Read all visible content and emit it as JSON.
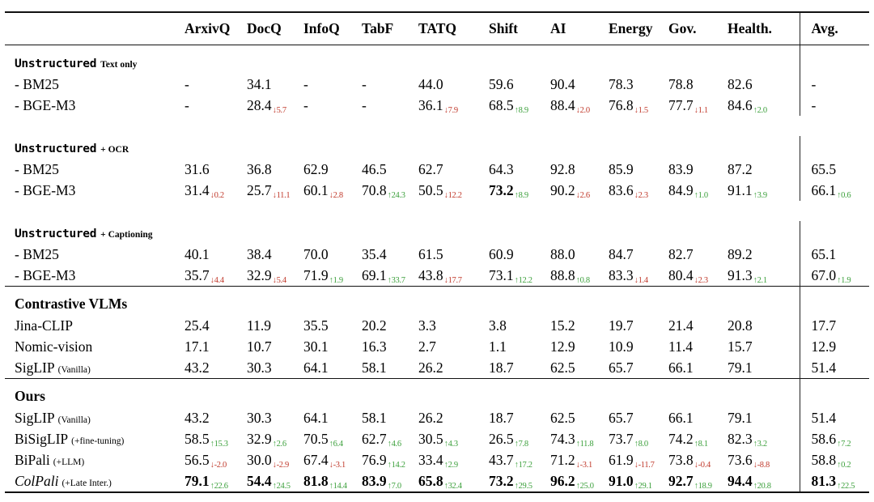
{
  "colors": {
    "up": "#3CA03C",
    "down": "#C0392B",
    "rule": "#111111"
  },
  "columns": [
    "ArxivQ",
    "DocQ",
    "InfoQ",
    "TabF",
    "TATQ",
    "Shift",
    "AI",
    "Energy",
    "Gov.",
    "Health.",
    "Avg."
  ],
  "blocks": [
    {
      "sections": [
        {
          "header": {
            "main": "Unstructured",
            "suffix": "Text only",
            "mono": true
          },
          "rows": [
            {
              "label": {
                "text": "- BM25"
              },
              "cells": [
                {
                  "v": "-"
                },
                {
                  "v": "34.1"
                },
                {
                  "v": "-"
                },
                {
                  "v": "-"
                },
                {
                  "v": "44.0"
                },
                {
                  "v": "59.6"
                },
                {
                  "v": "90.4"
                },
                {
                  "v": "78.3"
                },
                {
                  "v": "78.8"
                },
                {
                  "v": "82.6"
                },
                {
                  "v": "-"
                }
              ]
            },
            {
              "label": {
                "text": "- BGE-M3"
              },
              "cells": [
                {
                  "v": "-"
                },
                {
                  "v": "28.4",
                  "d": "↓5.7",
                  "dir": "down"
                },
                {
                  "v": "-"
                },
                {
                  "v": "-"
                },
                {
                  "v": "36.1",
                  "d": "↓7.9",
                  "dir": "down"
                },
                {
                  "v": "68.5",
                  "d": "↑8.9",
                  "dir": "up"
                },
                {
                  "v": "88.4",
                  "d": "↓2.0",
                  "dir": "down"
                },
                {
                  "v": "76.8",
                  "d": "↓1.5",
                  "dir": "down"
                },
                {
                  "v": "77.7",
                  "d": "↓1.1",
                  "dir": "down"
                },
                {
                  "v": "84.6",
                  "d": "↑2.0",
                  "dir": "up"
                },
                {
                  "v": "-"
                }
              ]
            }
          ]
        },
        {
          "header": {
            "main": "Unstructured",
            "suffix": "+ OCR",
            "mono": true
          },
          "rows": [
            {
              "label": {
                "text": "- BM25"
              },
              "cells": [
                {
                  "v": "31.6"
                },
                {
                  "v": "36.8"
                },
                {
                  "v": "62.9"
                },
                {
                  "v": "46.5"
                },
                {
                  "v": "62.7"
                },
                {
                  "v": "64.3"
                },
                {
                  "v": "92.8"
                },
                {
                  "v": "85.9"
                },
                {
                  "v": "83.9"
                },
                {
                  "v": "87.2"
                },
                {
                  "v": "65.5"
                }
              ]
            },
            {
              "label": {
                "text": "- BGE-M3"
              },
              "cells": [
                {
                  "v": "31.4",
                  "d": "↓0.2",
                  "dir": "down"
                },
                {
                  "v": "25.7",
                  "d": "↓11.1",
                  "dir": "down"
                },
                {
                  "v": "60.1",
                  "d": "↓2.8",
                  "dir": "down"
                },
                {
                  "v": "70.8",
                  "d": "↑24.3",
                  "dir": "up"
                },
                {
                  "v": "50.5",
                  "d": "↓12.2",
                  "dir": "down"
                },
                {
                  "v": "73.2",
                  "b": true,
                  "d": "↑8.9",
                  "dir": "up"
                },
                {
                  "v": "90.2",
                  "d": "↓2.6",
                  "dir": "down"
                },
                {
                  "v": "83.6",
                  "d": "↓2.3",
                  "dir": "down"
                },
                {
                  "v": "84.9",
                  "d": "↑1.0",
                  "dir": "up"
                },
                {
                  "v": "91.1",
                  "d": "↑3.9",
                  "dir": "up"
                },
                {
                  "v": "66.1",
                  "d": "↑0.6",
                  "dir": "up"
                }
              ]
            }
          ]
        },
        {
          "header": {
            "main": "Unstructured",
            "suffix": "+ Captioning",
            "mono": true
          },
          "rows": [
            {
              "label": {
                "text": "- BM25"
              },
              "cells": [
                {
                  "v": "40.1"
                },
                {
                  "v": "38.4"
                },
                {
                  "v": "70.0"
                },
                {
                  "v": "35.4"
                },
                {
                  "v": "61.5"
                },
                {
                  "v": "60.9"
                },
                {
                  "v": "88.0"
                },
                {
                  "v": "84.7"
                },
                {
                  "v": "82.7"
                },
                {
                  "v": "89.2"
                },
                {
                  "v": "65.1"
                }
              ]
            },
            {
              "label": {
                "text": "- BGE-M3"
              },
              "cells": [
                {
                  "v": "35.7",
                  "d": "↓4.4",
                  "dir": "down"
                },
                {
                  "v": "32.9",
                  "d": "↓5.4",
                  "dir": "down"
                },
                {
                  "v": "71.9",
                  "d": "↑1.9",
                  "dir": "up"
                },
                {
                  "v": "69.1",
                  "d": "↑33.7",
                  "dir": "up"
                },
                {
                  "v": "43.8",
                  "d": "↓17.7",
                  "dir": "down"
                },
                {
                  "v": "73.1",
                  "d": "↑12.2",
                  "dir": "up"
                },
                {
                  "v": "88.8",
                  "d": "↑0.8",
                  "dir": "up"
                },
                {
                  "v": "83.3",
                  "d": "↓1.4",
                  "dir": "down"
                },
                {
                  "v": "80.4",
                  "d": "↓2.3",
                  "dir": "down"
                },
                {
                  "v": "91.3",
                  "d": "↑2.1",
                  "dir": "up"
                },
                {
                  "v": "67.0",
                  "d": "↑1.9",
                  "dir": "up"
                }
              ]
            }
          ]
        }
      ]
    },
    {
      "sections": [
        {
          "header": {
            "main": "Contrastive VLMs",
            "mono": false
          },
          "rows": [
            {
              "label": {
                "text": "Jina-CLIP"
              },
              "cells": [
                {
                  "v": "25.4"
                },
                {
                  "v": "11.9"
                },
                {
                  "v": "35.5"
                },
                {
                  "v": "20.2"
                },
                {
                  "v": "3.3"
                },
                {
                  "v": "3.8"
                },
                {
                  "v": "15.2"
                },
                {
                  "v": "19.7"
                },
                {
                  "v": "21.4"
                },
                {
                  "v": "20.8"
                },
                {
                  "v": "17.7"
                }
              ]
            },
            {
              "label": {
                "text": "Nomic-vision"
              },
              "cells": [
                {
                  "v": "17.1"
                },
                {
                  "v": "10.7"
                },
                {
                  "v": "30.1"
                },
                {
                  "v": "16.3"
                },
                {
                  "v": "2.7"
                },
                {
                  "v": "1.1"
                },
                {
                  "v": "12.9"
                },
                {
                  "v": "10.9"
                },
                {
                  "v": "11.4"
                },
                {
                  "v": "15.7"
                },
                {
                  "v": "12.9"
                }
              ]
            },
            {
              "label": {
                "text": "SigLIP",
                "note": "(Vanilla)"
              },
              "cells": [
                {
                  "v": "43.2"
                },
                {
                  "v": "30.3"
                },
                {
                  "v": "64.1"
                },
                {
                  "v": "58.1"
                },
                {
                  "v": "26.2"
                },
                {
                  "v": "18.7"
                },
                {
                  "v": "62.5"
                },
                {
                  "v": "65.7"
                },
                {
                  "v": "66.1"
                },
                {
                  "v": "79.1"
                },
                {
                  "v": "51.4"
                }
              ]
            }
          ]
        }
      ]
    },
    {
      "sections": [
        {
          "header": {
            "main": "Ours",
            "mono": false
          },
          "rows": [
            {
              "label": {
                "text": "SigLIP",
                "note": "(Vanilla)"
              },
              "cells": [
                {
                  "v": "43.2"
                },
                {
                  "v": "30.3"
                },
                {
                  "v": "64.1"
                },
                {
                  "v": "58.1"
                },
                {
                  "v": "26.2"
                },
                {
                  "v": "18.7"
                },
                {
                  "v": "62.5"
                },
                {
                  "v": "65.7"
                },
                {
                  "v": "66.1"
                },
                {
                  "v": "79.1"
                },
                {
                  "v": "51.4"
                }
              ]
            },
            {
              "label": {
                "text": "BiSigLIP",
                "note": "(+fine-tuning)"
              },
              "cells": [
                {
                  "v": "58.5",
                  "d": "↑15.3",
                  "dir": "up"
                },
                {
                  "v": "32.9",
                  "d": "↑2.6",
                  "dir": "up"
                },
                {
                  "v": "70.5",
                  "d": "↑6.4",
                  "dir": "up"
                },
                {
                  "v": "62.7",
                  "d": "↑4.6",
                  "dir": "up"
                },
                {
                  "v": "30.5",
                  "d": "↑4.3",
                  "dir": "up"
                },
                {
                  "v": "26.5",
                  "d": "↑7.8",
                  "dir": "up"
                },
                {
                  "v": "74.3",
                  "d": "↑11.8",
                  "dir": "up"
                },
                {
                  "v": "73.7",
                  "d": "↑8.0",
                  "dir": "up"
                },
                {
                  "v": "74.2",
                  "d": "↑8.1",
                  "dir": "up"
                },
                {
                  "v": "82.3",
                  "d": "↑3.2",
                  "dir": "up"
                },
                {
                  "v": "58.6",
                  "d": "↑7.2",
                  "dir": "up"
                }
              ]
            },
            {
              "label": {
                "text": "BiPali",
                "note": "(+LLM)"
              },
              "cells": [
                {
                  "v": "56.5",
                  "d": "↓-2.0",
                  "dir": "down"
                },
                {
                  "v": "30.0",
                  "d": "↓-2.9",
                  "dir": "down"
                },
                {
                  "v": "67.4",
                  "d": "↓-3.1",
                  "dir": "down"
                },
                {
                  "v": "76.9",
                  "d": "↑14.2",
                  "dir": "up"
                },
                {
                  "v": "33.4",
                  "d": "↑2.9",
                  "dir": "up"
                },
                {
                  "v": "43.7",
                  "d": "↑17.2",
                  "dir": "up"
                },
                {
                  "v": "71.2",
                  "d": "↓-3.1",
                  "dir": "down"
                },
                {
                  "v": "61.9",
                  "d": "↓-11.7",
                  "dir": "down"
                },
                {
                  "v": "73.8",
                  "d": "↓-0.4",
                  "dir": "down"
                },
                {
                  "v": "73.6",
                  "d": "↓-8.8",
                  "dir": "down"
                },
                {
                  "v": "58.8",
                  "d": "↑0.2",
                  "dir": "up"
                }
              ]
            },
            {
              "label": {
                "text": "ColPali",
                "note": "(+Late Inter.)",
                "italic": true
              },
              "cells": [
                {
                  "v": "79.1",
                  "b": true,
                  "d": "↑22.6",
                  "dir": "up"
                },
                {
                  "v": "54.4",
                  "b": true,
                  "d": "↑24.5",
                  "dir": "up"
                },
                {
                  "v": "81.8",
                  "b": true,
                  "d": "↑14.4",
                  "dir": "up"
                },
                {
                  "v": "83.9",
                  "b": true,
                  "d": "↑7.0",
                  "dir": "up"
                },
                {
                  "v": "65.8",
                  "b": true,
                  "d": "↑32.4",
                  "dir": "up"
                },
                {
                  "v": "73.2",
                  "b": true,
                  "d": "↑29.5",
                  "dir": "up"
                },
                {
                  "v": "96.2",
                  "b": true,
                  "d": "↑25.0",
                  "dir": "up"
                },
                {
                  "v": "91.0",
                  "b": true,
                  "d": "↑29.1",
                  "dir": "up"
                },
                {
                  "v": "92.7",
                  "b": true,
                  "d": "↑18.9",
                  "dir": "up"
                },
                {
                  "v": "94.4",
                  "b": true,
                  "d": "↑20.8",
                  "dir": "up"
                },
                {
                  "v": "81.3",
                  "b": true,
                  "d": "↑22.5",
                  "dir": "up"
                }
              ]
            }
          ]
        }
      ]
    }
  ]
}
